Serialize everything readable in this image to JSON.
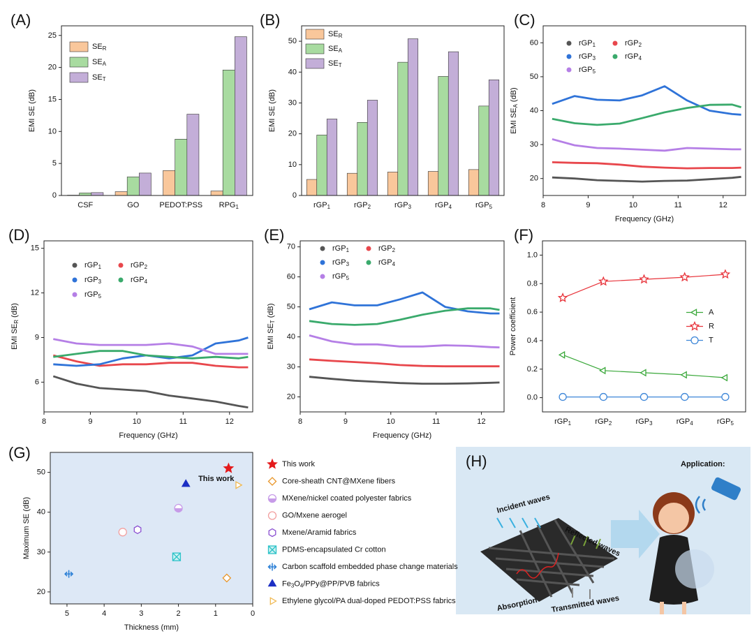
{
  "chart_data": [
    {
      "panel": "(A)",
      "type": "bar",
      "ylabel": "EMI SE (dB)",
      "categories": [
        "CSF",
        "GO",
        "PEDOT:PSS",
        "RPG_1"
      ],
      "series": [
        {
          "name": "SE_R",
          "color": "#f9c79b",
          "values": [
            0.05,
            0.6,
            3.9,
            0.7
          ]
        },
        {
          "name": "SE_A",
          "color": "#a8dba0",
          "values": [
            0.4,
            2.9,
            8.8,
            19.6
          ]
        },
        {
          "name": "SE_T",
          "color": "#c3aed8",
          "values": [
            0.45,
            3.5,
            12.7,
            24.8
          ]
        }
      ],
      "ylim": [
        0,
        26.5
      ],
      "yticks": [
        0,
        5,
        10,
        15,
        20,
        25
      ],
      "legend": "upper left"
    },
    {
      "panel": "(B)",
      "type": "bar",
      "ylabel": "EMI SE (dB)",
      "categories": [
        "rGP_1",
        "rGP_2",
        "rGP_3",
        "rGP_4",
        "rGP_5"
      ],
      "series": [
        {
          "name": "SE_R",
          "color": "#f9c79b",
          "values": [
            5.2,
            7.2,
            7.6,
            7.8,
            8.4
          ]
        },
        {
          "name": "SE_A",
          "color": "#a8dba0",
          "values": [
            19.6,
            23.7,
            43.2,
            38.6,
            29.0
          ]
        },
        {
          "name": "SE_T",
          "color": "#c3aed8",
          "values": [
            24.8,
            30.9,
            50.8,
            46.6,
            37.5
          ]
        }
      ],
      "ylim": [
        0,
        55
      ],
      "yticks": [
        0,
        10,
        20,
        30,
        40,
        50
      ],
      "legend": "upper left"
    },
    {
      "panel": "(C)",
      "type": "line",
      "xlabel": "Frequency (GHz)",
      "ylabel": "EMI SE_A (dB)",
      "x": [
        8.2,
        8.7,
        9.2,
        9.7,
        10.2,
        10.7,
        11.2,
        11.7,
        12.2,
        12.4
      ],
      "series": [
        {
          "name": "rGP_1",
          "color": "#555555",
          "values": [
            20.3,
            20,
            19.5,
            19.3,
            19.1,
            19.3,
            19.4,
            19.8,
            20.2,
            20.5
          ]
        },
        {
          "name": "rGP_2",
          "color": "#e8474c",
          "values": [
            24.8,
            24.6,
            24.5,
            24.1,
            23.5,
            23.2,
            23,
            23.1,
            23.1,
            23.2
          ]
        },
        {
          "name": "rGP_3",
          "color": "#2f73d8",
          "values": [
            42,
            44.3,
            43.2,
            43,
            44.5,
            47.2,
            43,
            40,
            39,
            38.8
          ]
        },
        {
          "name": "rGP_4",
          "color": "#3aaa6c",
          "values": [
            37.6,
            36.3,
            35.8,
            36.2,
            37.8,
            39.5,
            40.8,
            41.7,
            41.8,
            41
          ]
        },
        {
          "name": "rGP_5",
          "color": "#b57fe6",
          "values": [
            31.6,
            29.8,
            29,
            28.8,
            28.5,
            28.2,
            29,
            28.8,
            28.6,
            28.6
          ]
        }
      ],
      "xlim": [
        8,
        12.5
      ],
      "xticks": [
        8,
        9,
        10,
        11,
        12
      ],
      "ylim": [
        15,
        65
      ],
      "yticks": [
        20,
        30,
        40,
        50,
        60
      ],
      "legend": "upper left"
    },
    {
      "panel": "(D)",
      "type": "line",
      "xlabel": "Frequency (GHz)",
      "ylabel": "EMI SE_R (dB)",
      "x": [
        8.2,
        8.7,
        9.2,
        9.7,
        10.2,
        10.7,
        11.2,
        11.7,
        12.2,
        12.4
      ],
      "series": [
        {
          "name": "rGP_1",
          "color": "#555555",
          "values": [
            6.4,
            5.9,
            5.6,
            5.5,
            5.4,
            5.1,
            4.9,
            4.7,
            4.4,
            4.3
          ]
        },
        {
          "name": "rGP_2",
          "color": "#e8474c",
          "values": [
            7.8,
            7.4,
            7.1,
            7.2,
            7.2,
            7.3,
            7.3,
            7.1,
            7.0,
            7.0
          ]
        },
        {
          "name": "rGP_3",
          "color": "#2f73d8",
          "values": [
            7.2,
            7.1,
            7.2,
            7.6,
            7.8,
            7.6,
            7.8,
            8.6,
            8.8,
            9.0
          ]
        },
        {
          "name": "rGP_4",
          "color": "#3aaa6c",
          "values": [
            7.7,
            7.9,
            8.1,
            8.1,
            7.8,
            7.7,
            7.6,
            7.7,
            7.6,
            7.7
          ]
        },
        {
          "name": "rGP_5",
          "color": "#b57fe6",
          "values": [
            8.9,
            8.6,
            8.5,
            8.5,
            8.5,
            8.6,
            8.4,
            7.9,
            7.9,
            7.9
          ]
        }
      ],
      "xlim": [
        8,
        12.5
      ],
      "xticks": [
        8,
        9,
        10,
        11,
        12
      ],
      "ylim": [
        4,
        15.5
      ],
      "yticks": [
        6,
        9,
        12,
        15
      ],
      "legend": "upper left"
    },
    {
      "panel": "(E)",
      "type": "line",
      "xlabel": "Frequency (GHz)",
      "ylabel": "EMI SE_T (dB)",
      "x": [
        8.2,
        8.7,
        9.2,
        9.7,
        10.2,
        10.7,
        11.2,
        11.7,
        12.2,
        12.4
      ],
      "series": [
        {
          "name": "rGP_1",
          "color": "#555555",
          "values": [
            26.7,
            26,
            25.4,
            25,
            24.6,
            24.4,
            24.4,
            24.5,
            24.7,
            24.8
          ]
        },
        {
          "name": "rGP_2",
          "color": "#e8474c",
          "values": [
            32.5,
            32,
            31.6,
            31.2,
            30.6,
            30.3,
            30.2,
            30.2,
            30.2,
            30.2
          ]
        },
        {
          "name": "rGP_3",
          "color": "#2f73d8",
          "values": [
            49.2,
            51.5,
            50.5,
            50.5,
            52.5,
            54.8,
            50,
            48.5,
            47.8,
            47.8
          ]
        },
        {
          "name": "rGP_4",
          "color": "#3aaa6c",
          "values": [
            45.3,
            44.3,
            44,
            44.3,
            45.7,
            47.4,
            48.7,
            49.5,
            49.5,
            49
          ]
        },
        {
          "name": "rGP_5",
          "color": "#b57fe6",
          "values": [
            40.5,
            38.5,
            37.5,
            37.5,
            36.8,
            36.8,
            37.2,
            37,
            36.6,
            36.5
          ]
        }
      ],
      "xlim": [
        8,
        12.5
      ],
      "xticks": [
        8,
        9,
        10,
        11,
        12
      ],
      "ylim": [
        15,
        72
      ],
      "yticks": [
        20,
        30,
        40,
        50,
        60,
        70
      ],
      "legend": "upper left"
    },
    {
      "panel": "(F)",
      "type": "line",
      "ylabel": "Power coefficient",
      "categories": [
        "rGP_1",
        "rGP_2",
        "rGP_3",
        "rGP_4",
        "rGP_5"
      ],
      "series": [
        {
          "name": "A",
          "color": "#3aa83a",
          "marker": "triangle-left-open",
          "values": [
            0.3,
            0.19,
            0.175,
            0.16,
            0.14
          ]
        },
        {
          "name": "R",
          "color": "#e8333a",
          "marker": "star-open",
          "values": [
            0.7,
            0.815,
            0.83,
            0.845,
            0.865
          ]
        },
        {
          "name": "T",
          "color": "#3d86d8",
          "marker": "circle-open",
          "values": [
            0.005,
            0.005,
            0.005,
            0.005,
            0.005
          ]
        }
      ],
      "ylim": [
        -0.1,
        1.1
      ],
      "yticks": [
        {
          "value": 0,
          "label": "0.0"
        },
        0.2,
        0.4,
        0.6,
        0.8,
        {
          "value": 1,
          "label": "1.0"
        }
      ],
      "legend": "center right"
    },
    {
      "panel": "(G)",
      "type": "scatter",
      "xlabel": "Thickness (mm)",
      "ylabel": "Maximum SE (dB)",
      "series": [
        {
          "name": "This work",
          "color": "#e41a1c",
          "marker": "star",
          "x": [
            0.65
          ],
          "values": [
            51
          ]
        },
        {
          "name": "Core-sheath CNT@MXene fibers",
          "color": "#e8962a",
          "marker": "diamond-open",
          "x": [
            0.7
          ],
          "values": [
            23.5
          ]
        },
        {
          "name": "MXene/nickel coated polyester fabrics",
          "color": "#c79be8",
          "marker": "half-circle",
          "x": [
            2.0
          ],
          "values": [
            41
          ]
        },
        {
          "name": "GO/Mxene aerogel",
          "color": "#f2a0a0",
          "marker": "circle-open",
          "x": [
            3.5
          ],
          "values": [
            35
          ]
        },
        {
          "name": "Mxene/Aramid fabrics",
          "color": "#8a4fd1",
          "marker": "hexagon-open",
          "x": [
            3.1
          ],
          "values": [
            35.6
          ]
        },
        {
          "name": "PDMS-encapsulated Cr cotton",
          "color": "#2cc2c8",
          "marker": "square-x",
          "x": [
            2.05
          ],
          "values": [
            28.8
          ]
        },
        {
          "name": "Carbon scaffold embedded phase change materials",
          "color": "#2a7fd6",
          "marker": "cross",
          "x": [
            4.95
          ],
          "values": [
            24.5
          ]
        },
        {
          "name": "Fe_3O_4/PPy@PP/PVB fabrics",
          "color": "#1c2fc4",
          "marker": "triangle-up",
          "x": [
            1.8
          ],
          "values": [
            47
          ]
        },
        {
          "name": "Ethylene glycol/PA dual-doped PEDOT:PSS fabrics",
          "color": "#f0b850",
          "marker": "triangle-right-open",
          "x": [
            0.4
          ],
          "values": [
            46.8
          ]
        }
      ],
      "annotation": "This work",
      "xlim": [
        5.45,
        0
      ],
      "xticks": [
        5,
        4,
        3,
        2,
        1,
        0
      ],
      "ylim": [
        17,
        55
      ],
      "yticks": [
        20,
        30,
        40,
        50
      ],
      "legend": "outside right"
    }
  ],
  "illustration": {
    "panel": "(H)",
    "title": "Application:",
    "labels": [
      "Incident waves",
      "Reflected waves",
      "Transmitted waves",
      "Absorption"
    ]
  }
}
